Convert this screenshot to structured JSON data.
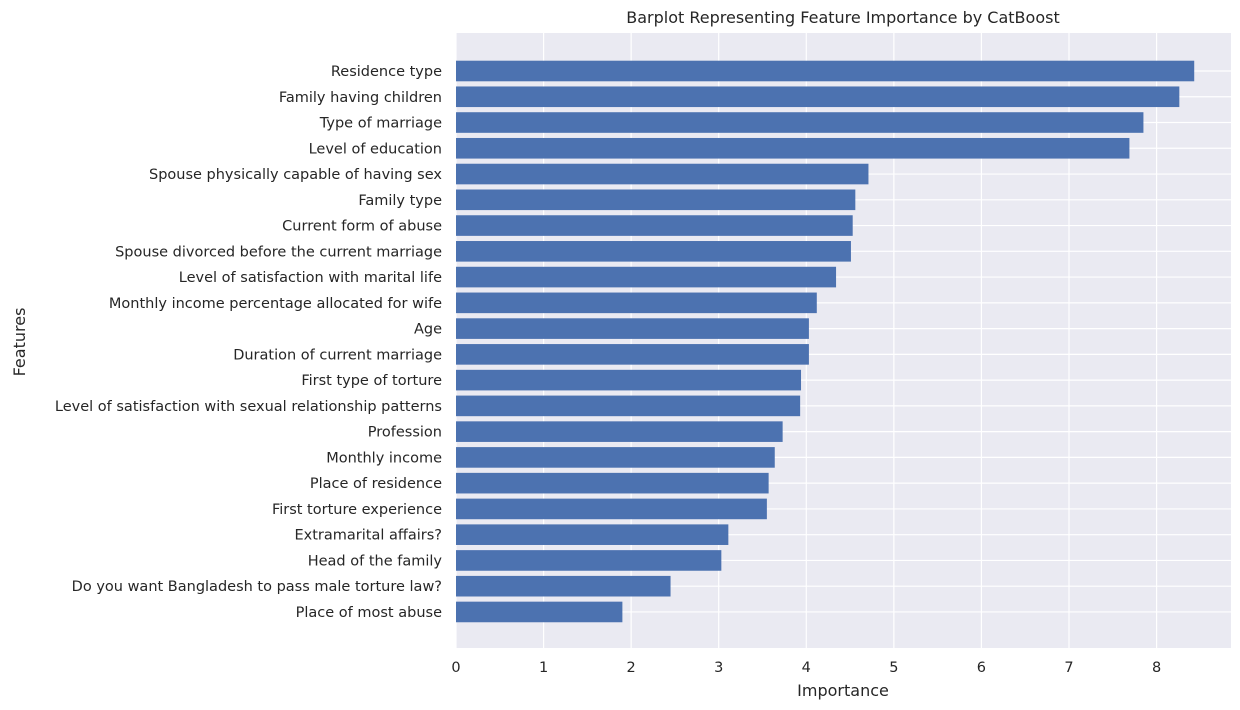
{
  "chart_data": {
    "type": "bar",
    "orientation": "horizontal",
    "title": "Barplot Representing Feature Importance by CatBoost",
    "xlabel": "Importance",
    "ylabel": "Features",
    "xlim": [
      0,
      8.85
    ],
    "xticks": [
      0,
      1,
      2,
      3,
      4,
      5,
      6,
      7,
      8
    ],
    "grid": true,
    "legend": "none",
    "bar_color": "#4c72b0",
    "background_color": "#eaeaf2",
    "grid_color": "#ffffff",
    "categories": [
      "Residence type",
      "Family having children",
      "Type of marriage",
      "Level of education",
      "Spouse physically capable of having sex",
      "Family type",
      "Current form of abuse",
      "Spouse divorced before the current marriage",
      "Level of satisfaction with marital life",
      "Monthly income percentage allocated for wife",
      "Age",
      "Duration of current marriage",
      "First type of torture",
      "Level of satisfaction with sexual relationship patterns",
      "Profession",
      "Monthly income",
      "Place of residence",
      "First torture experience",
      "Extramarital affairs?",
      "Head of the family",
      "Do you want Bangladesh to pass male torture law?",
      "Place of most abuse"
    ],
    "values": [
      8.43,
      8.26,
      7.85,
      7.69,
      4.71,
      4.56,
      4.53,
      4.51,
      4.34,
      4.12,
      4.03,
      4.03,
      3.94,
      3.93,
      3.73,
      3.64,
      3.57,
      3.55,
      3.11,
      3.03,
      2.45,
      1.9
    ]
  }
}
